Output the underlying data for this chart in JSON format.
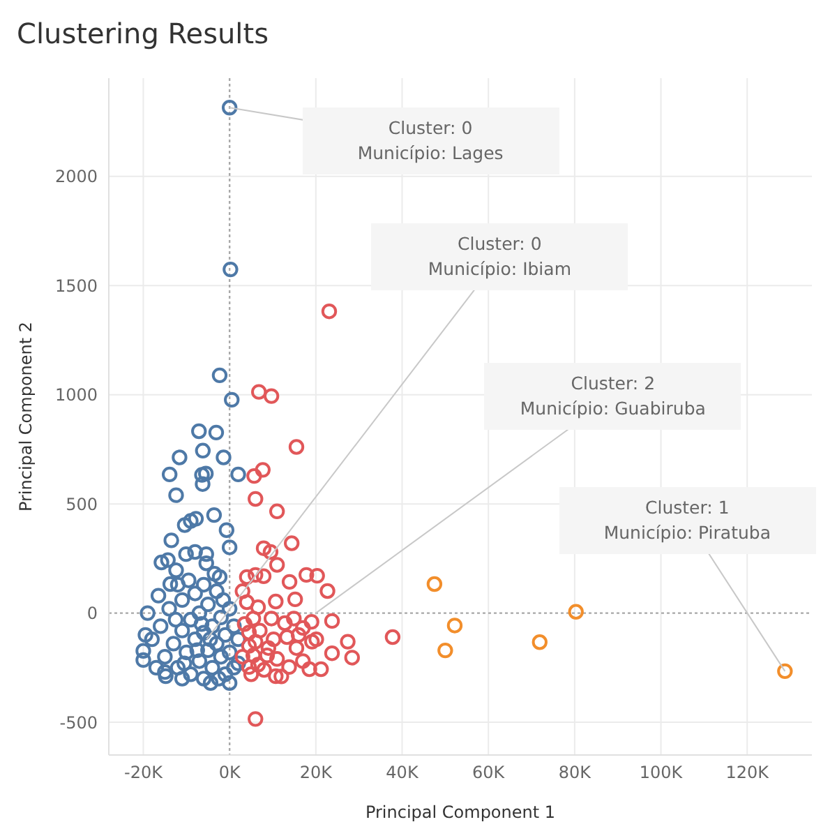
{
  "chart_data": {
    "type": "scatter",
    "title": "Clustering Results",
    "xlabel": "Principal Component 1",
    "ylabel": "Principal Component 2",
    "xlim": [
      -28000,
      135000
    ],
    "ylim": [
      -650,
      2450
    ],
    "xticks": [
      {
        "value": -20000,
        "label": "-20K"
      },
      {
        "value": 0,
        "label": "0K"
      },
      {
        "value": 20000,
        "label": "20K"
      },
      {
        "value": 40000,
        "label": "40K"
      },
      {
        "value": 60000,
        "label": "60K"
      },
      {
        "value": 80000,
        "label": "80K"
      },
      {
        "value": 100000,
        "label": "100K"
      },
      {
        "value": 120000,
        "label": "120K"
      }
    ],
    "yticks": [
      -500,
      0,
      500,
      1000,
      1500,
      2000
    ],
    "grid": true,
    "legend": false,
    "marker": "circle",
    "series": [
      {
        "color": "#4e79a7",
        "x": [
          0,
          200,
          -2300,
          500,
          -7100,
          -3100,
          -11600,
          -6200,
          -1400,
          2000,
          -13900,
          -6400,
          -5500,
          -6250,
          -12400,
          -10400,
          -9000,
          -7800,
          -3600,
          -700,
          -13500,
          0,
          -15800,
          -14300,
          -12400,
          -10100,
          -8000,
          -5400,
          -5400,
          -13750,
          -2300,
          -19000,
          -4400,
          0,
          -14800,
          -20000,
          -20000,
          -18000,
          -16000,
          -15000,
          -14000,
          -13000,
          -12000,
          -11000,
          -11000,
          -10000,
          -9000,
          -9000,
          -8000,
          -8000,
          -7000,
          -7000,
          -6000,
          -6000,
          -5000,
          -5000,
          -4000,
          -4000,
          -3000,
          -3000,
          -2000,
          -2000,
          -1000,
          -1000,
          0,
          0,
          1000,
          2000,
          2000,
          -17000,
          -19500,
          -16500,
          -12500,
          -10500,
          -7500,
          -6500,
          -4500,
          -2500,
          -1500,
          -15000,
          -12000,
          -9500,
          -3500,
          -6000,
          1000,
          -11000
        ],
        "values": [
          2315,
          1574,
          1089,
          977,
          833,
          827,
          713,
          744,
          713,
          635,
          635,
          633,
          639,
          591,
          540,
          403,
          422,
          432,
          449,
          380,
          333,
          301,
          232,
          243,
          196,
          270,
          280,
          270,
          228,
          133,
          165,
          0,
          -320,
          -320,
          -289,
          -215,
          -173,
          -120,
          -60,
          -200,
          20,
          -140,
          -250,
          -80,
          60,
          -180,
          -30,
          -280,
          -120,
          90,
          -220,
          0,
          -90,
          -300,
          -170,
          40,
          -250,
          -60,
          -140,
          100,
          -200,
          -20,
          -280,
          -100,
          -180,
          20,
          -60,
          -230,
          -120,
          -250,
          -100,
          80,
          -30,
          -230,
          -170,
          -50,
          -120,
          -300,
          60,
          -270,
          130,
          150,
          180,
          130,
          -250,
          -300
        ]
      },
      {
        "color": "#e15759",
        "x": [
          23100,
          6800,
          9700,
          15500,
          5700,
          7700,
          6000,
          11000,
          14400,
          7900,
          9500,
          11000,
          4000,
          6000,
          7900,
          13900,
          17800,
          20300,
          22700,
          15200,
          10700,
          6600,
          9700,
          12800,
          14900,
          17000,
          19100,
          20100,
          23750,
          27400,
          28400,
          23750,
          21200,
          18500,
          13800,
          10700,
          6600,
          4500,
          8700,
          6000,
          10200,
          13300,
          37800,
          6000,
          5500,
          5500,
          4500,
          3000,
          3500,
          4000,
          4500,
          5000,
          7000,
          8000,
          9000,
          11000,
          12000,
          15500,
          17000,
          16000,
          19000,
          3000
        ],
        "values": [
          1382,
          1013,
          994,
          761,
          628,
          656,
          523,
          466,
          320,
          297,
          280,
          221,
          165,
          175,
          169,
          143,
          175,
          171,
          101,
          63,
          53,
          27,
          -25,
          -46,
          -25,
          -68,
          -131,
          -120,
          -36,
          -131,
          -204,
          -184,
          -257,
          -257,
          -247,
          -289,
          -236,
          -247,
          -194,
          -131,
          -120,
          -110,
          -110,
          -485,
          -25,
          -194,
          -89,
          -200,
          -50,
          50,
          -150,
          -280,
          -80,
          -260,
          -160,
          -210,
          -290,
          -160,
          -220,
          -100,
          -40,
          100
        ]
      },
      {
        "color": "#f28e2b",
        "x": [
          47500,
          52200,
          50000,
          71900,
          80300,
          128750
        ],
        "values": [
          133,
          -57,
          -171,
          -133,
          6,
          -266
        ]
      }
    ],
    "annotations": [
      {
        "text": "Cluster: 0\nMunicípio: Lages",
        "x": 0,
        "y": 2315
      },
      {
        "text": "Cluster: 0\nMunicípio: Ibiam",
        "x": -5300,
        "y": -120
      },
      {
        "text": "Cluster: 2\nMunicípio: Guabiruba",
        "x": 20000,
        "y": 0
      },
      {
        "text": "Cluster: 1\nMunicípio: Piratuba",
        "x": 128750,
        "y": -266
      }
    ]
  }
}
